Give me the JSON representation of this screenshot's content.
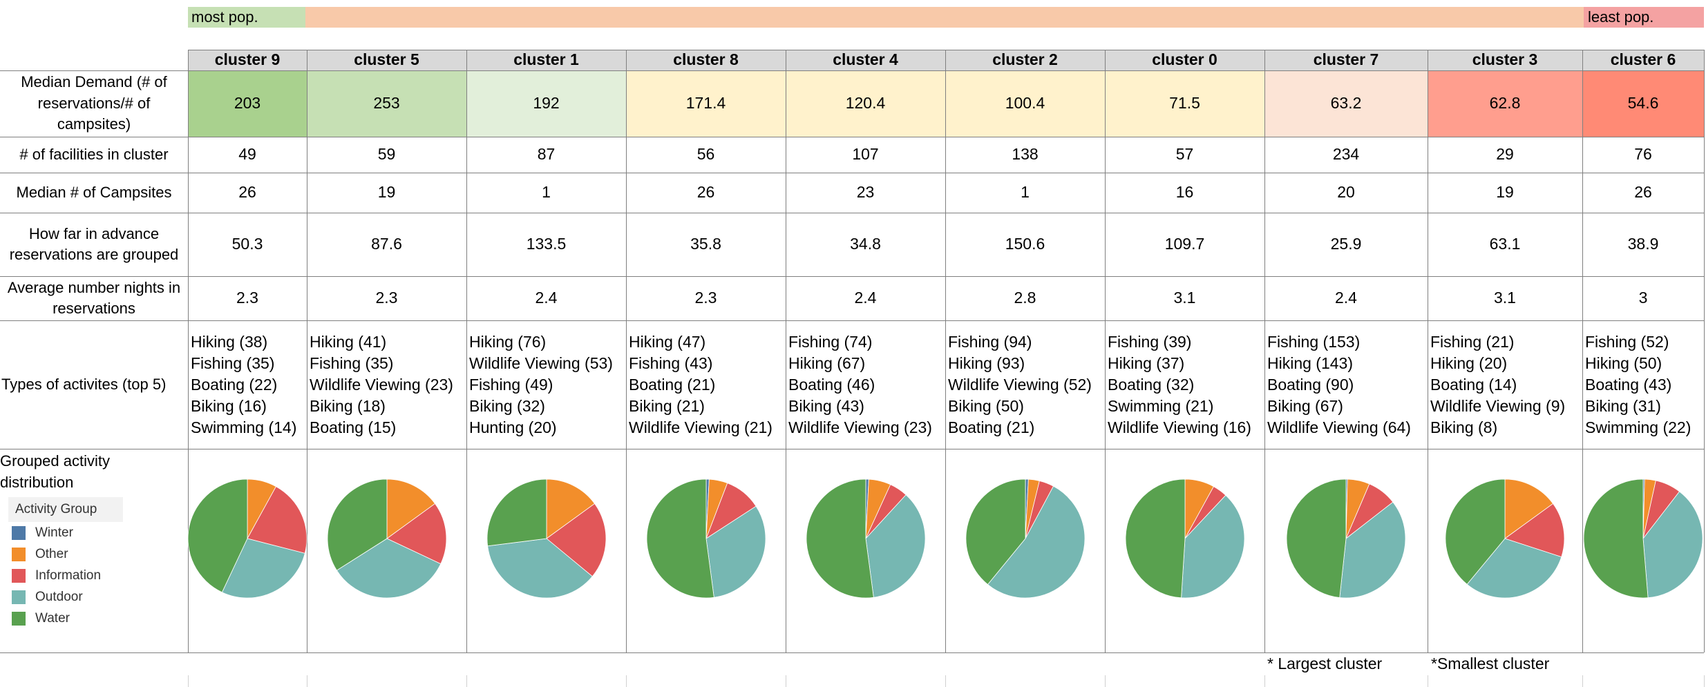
{
  "popularity": {
    "most_label": "most pop.",
    "least_label": "least pop."
  },
  "headers": [
    "cluster 9",
    "cluster 5",
    "cluster 1",
    "cluster 8",
    "cluster 4",
    "cluster 2",
    "cluster 0",
    "cluster 7",
    "cluster 3",
    "cluster 6"
  ],
  "row_labels": {
    "demand": "Median Demand (# of reservations/# of campsites)",
    "facilities": "# of facilities in cluster",
    "campsites": "Median # of Campsites",
    "advance": "How far in advance reservations are grouped",
    "nights": "Average number nights in reservations",
    "activities": "Types of activites (top 5)",
    "distribution": "Grouped activity distribution"
  },
  "demand": [
    "203",
    "253",
    "192",
    "171.4",
    "120.4",
    "100.4",
    "71.5",
    "63.2",
    "62.8",
    "54.6"
  ],
  "demand_colors": [
    "#a9d18e",
    "#c6e0b4",
    "#e2efda",
    "#fff2cc",
    "#fff2cc",
    "#fff2cc",
    "#fff2cc",
    "#fce4d6",
    "#ff9e8e",
    "#ff8a75"
  ],
  "facilities": [
    "49",
    "59",
    "87",
    "56",
    "107",
    "138",
    "57",
    "234",
    "29",
    "76"
  ],
  "campsites": [
    "26",
    "19",
    "1",
    "26",
    "23",
    "1",
    "16",
    "20",
    "19",
    "26"
  ],
  "advance": [
    "50.3",
    "87.6",
    "133.5",
    "35.8",
    "34.8",
    "150.6",
    "109.7",
    "25.9",
    "63.1",
    "38.9"
  ],
  "nights": [
    "2.3",
    "2.3",
    "2.4",
    "2.3",
    "2.4",
    "2.8",
    "3.1",
    "2.4",
    "3.1",
    "3"
  ],
  "activities": [
    "Hiking (38)\nFishing (35)\nBoating (22)\nBiking (16)\nSwimming (14)",
    "Hiking (41)\nFishing (35)\nWildlife Viewing (23)\nBiking (18)\nBoating (15)",
    "Hiking (76)\nWildlife Viewing (53)\nFishing (49)\nBiking (32)\nHunting (20)",
    "Hiking (47)\nFishing (43)\nBoating (21)\nBiking (21)\nWildlife Viewing (21)",
    "Fishing (74)\nHiking (67)\nBoating (46)\nBiking (43)\nWildlife Viewing (23)",
    "Fishing (94)\nHiking (93)\nWildlife Viewing (52)\nBiking (50)\nBoating (21)",
    "Fishing (39)\nHiking (37)\nBoating (32)\nSwimming (21)\nWildlife Viewing (16)",
    "Fishing (153)\nHiking (143)\nBoating (90)\nBiking (67)\nWildlife Viewing (64)",
    "Fishing (21)\nHiking (20)\nBoating (14)\nWildlife Viewing (9)\nBiking (8)",
    "Fishing (52)\nHiking (50)\nBoating (43)\nBiking (31)\nSwimming (22)"
  ],
  "legend": {
    "title": "Activity Group",
    "items": [
      {
        "label": "Winter",
        "color": "#4e79a7"
      },
      {
        "label": "Other",
        "color": "#f28e2b"
      },
      {
        "label": "Information",
        "color": "#e15759"
      },
      {
        "label": "Outdoor",
        "color": "#76b7b2"
      },
      {
        "label": "Water",
        "color": "#59a14f"
      }
    ]
  },
  "chart_data": {
    "type": "pie",
    "category_order": [
      "Winter",
      "Other",
      "Information",
      "Outdoor",
      "Water"
    ],
    "pies": [
      {
        "cluster": "cluster 9",
        "values": [
          0,
          8,
          21,
          28,
          43
        ]
      },
      {
        "cluster": "cluster 5",
        "values": [
          0,
          15,
          17,
          34,
          34
        ]
      },
      {
        "cluster": "cluster 1",
        "values": [
          0,
          15,
          21,
          37,
          27
        ]
      },
      {
        "cluster": "cluster 8",
        "values": [
          0.8,
          5,
          10,
          32,
          52
        ]
      },
      {
        "cluster": "cluster 4",
        "values": [
          0.8,
          6,
          5,
          36,
          52
        ]
      },
      {
        "cluster": "cluster 2",
        "values": [
          0.8,
          3,
          4,
          53,
          39
        ]
      },
      {
        "cluster": "cluster 0",
        "values": [
          0,
          8,
          4,
          39,
          49
        ]
      },
      {
        "cluster": "cluster 7",
        "values": [
          0.4,
          6,
          8,
          37,
          48
        ]
      },
      {
        "cluster": "cluster 3",
        "values": [
          0,
          15,
          15,
          31,
          39
        ]
      },
      {
        "cluster": "cluster 6",
        "values": [
          0.4,
          3,
          7,
          38,
          51
        ]
      }
    ]
  },
  "notes": {
    "largest": "* Largest cluster",
    "smallest": "*Smallest cluster"
  }
}
